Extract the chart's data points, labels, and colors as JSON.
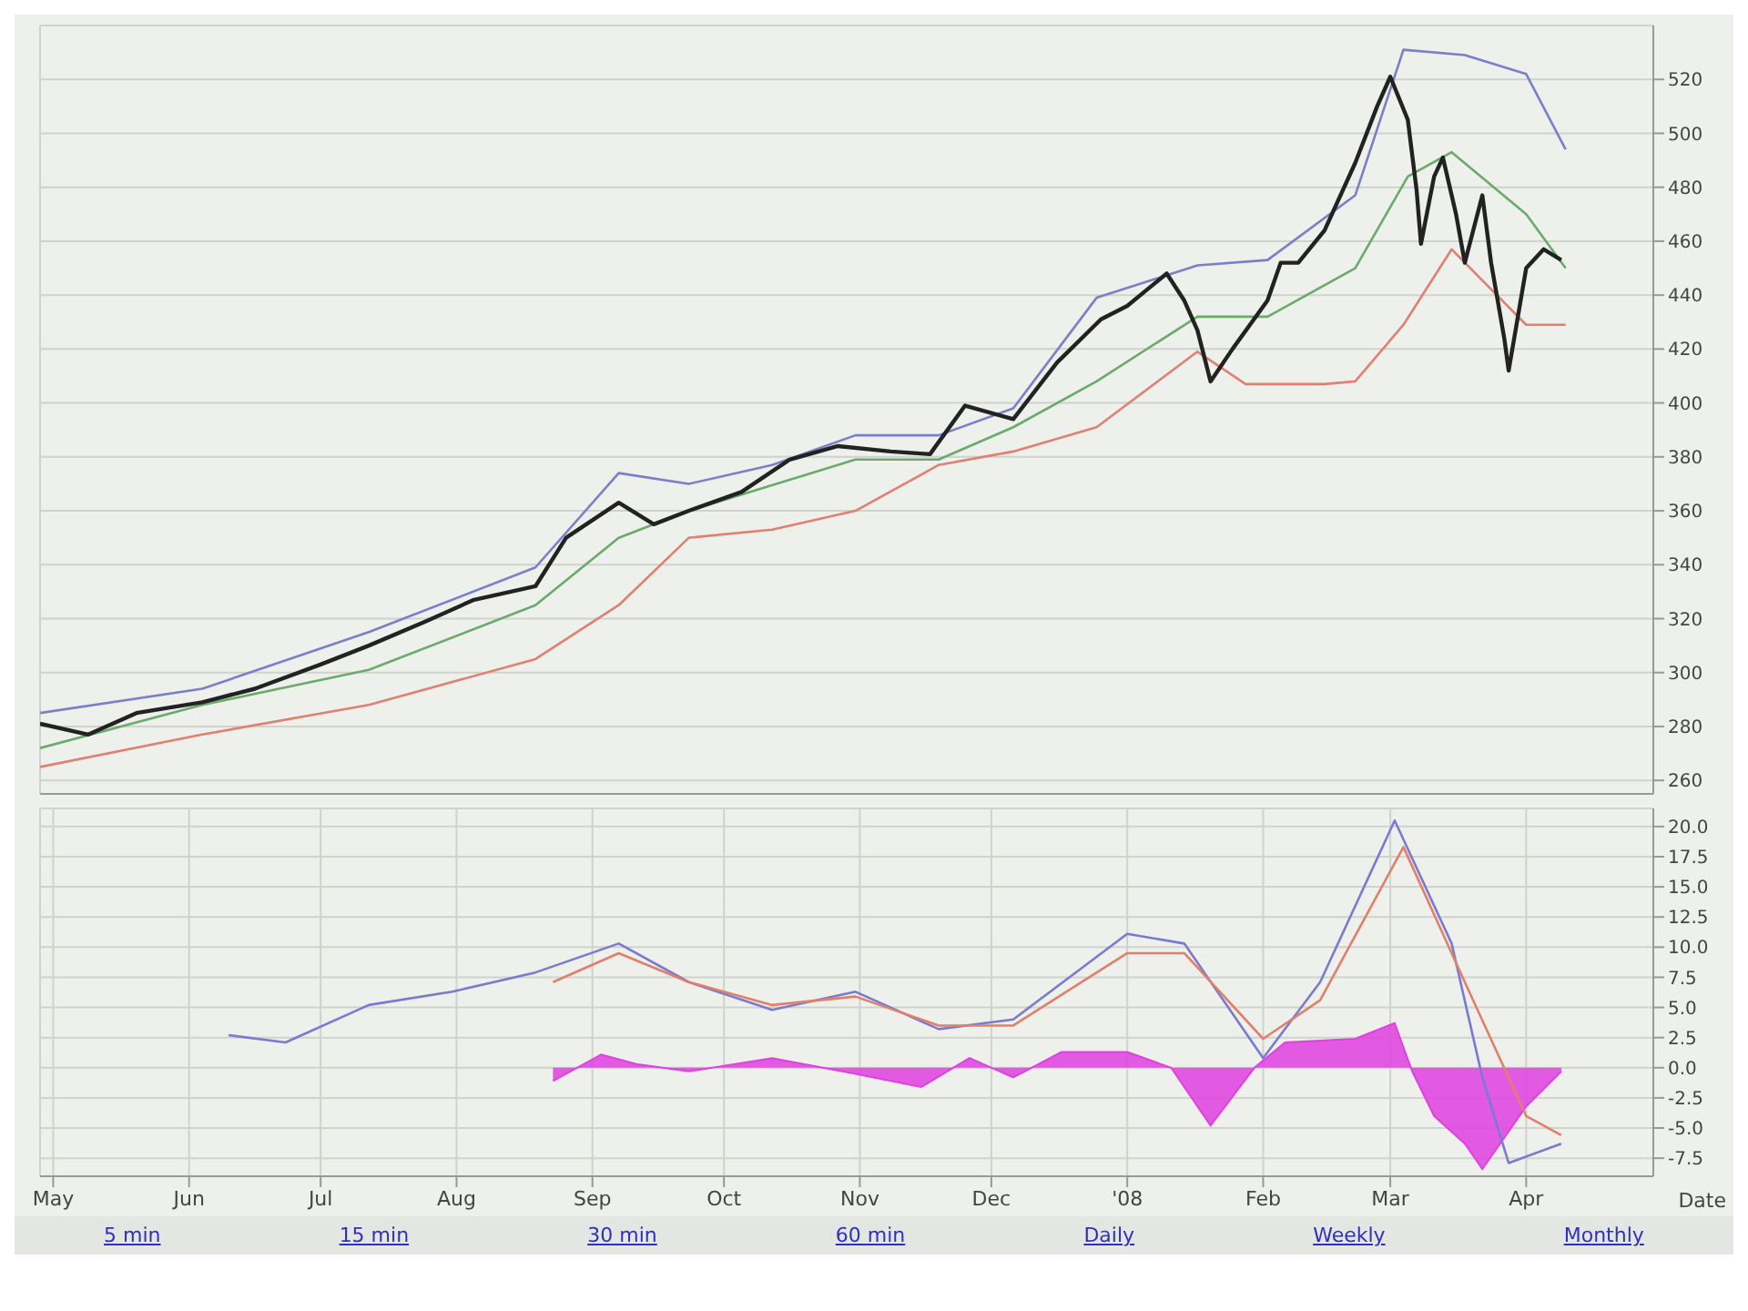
{
  "chart_data": [
    {
      "type": "line",
      "grid": true,
      "tick_labels": "y",
      "xlim": [
        "2007-04-28",
        "2008-04-30"
      ],
      "ylim": [
        255,
        540
      ],
      "xticks": [
        {
          "value": "2007-05-01",
          "label": null
        },
        {
          "value": "2007-06-01",
          "label": null
        },
        {
          "value": "2007-07-01",
          "label": null
        },
        {
          "value": "2007-08-01",
          "label": null
        },
        {
          "value": "2007-09-01",
          "label": null
        },
        {
          "value": "2007-10-01",
          "label": null
        },
        {
          "value": "2007-11-01",
          "label": null
        },
        {
          "value": "2007-12-01",
          "label": null
        },
        {
          "value": "2008-01-01",
          "label": null
        },
        {
          "value": "2008-02-01",
          "label": null
        },
        {
          "value": "2008-03-01",
          "label": null
        },
        {
          "value": "2008-04-01",
          "label": null
        }
      ],
      "yticks": [
        260,
        280,
        300,
        320,
        340,
        360,
        380,
        400,
        420,
        440,
        460,
        480,
        500,
        520
      ],
      "series": [
        {
          "color": "#7b7fc9",
          "x": [
            "2007-04-28",
            "2007-06-04",
            "2007-07-12",
            "2007-08-19",
            "2007-09-07",
            "2007-09-23",
            "2007-10-12",
            "2007-10-31",
            "2007-11-19",
            "2007-12-06",
            "2007-12-25",
            "2008-01-17",
            "2008-02-02",
            "2008-02-22",
            "2008-03-04",
            "2008-03-18",
            "2008-04-01",
            "2008-04-10"
          ],
          "values": [
            285,
            294,
            315,
            339,
            374,
            370,
            377,
            388,
            388,
            398,
            439,
            451,
            453,
            477,
            531,
            529,
            522,
            494
          ]
        },
        {
          "color": "#6aaa6a",
          "x": [
            "2007-04-28",
            "2007-06-04",
            "2007-07-12",
            "2007-08-19",
            "2007-09-07",
            "2007-09-23",
            "2007-10-31",
            "2007-11-19",
            "2007-12-06",
            "2007-12-25",
            "2008-01-17",
            "2008-02-02",
            "2008-02-22",
            "2008-03-05",
            "2008-03-15",
            "2008-04-01",
            "2008-04-10"
          ],
          "values": [
            272,
            288,
            301,
            325,
            350,
            360,
            379,
            379,
            391,
            408,
            432,
            432,
            450,
            484,
            493,
            470,
            450
          ]
        },
        {
          "color": "#e08070",
          "x": [
            "2007-04-28",
            "2007-06-04",
            "2007-07-12",
            "2007-08-19",
            "2007-09-07",
            "2007-09-23",
            "2007-10-12",
            "2007-10-31",
            "2007-11-19",
            "2007-12-06",
            "2007-12-25",
            "2008-01-17",
            "2008-01-28",
            "2008-02-15",
            "2008-02-22",
            "2008-03-04",
            "2008-03-15",
            "2008-04-01",
            "2008-04-10"
          ],
          "values": [
            265,
            277,
            288,
            305,
            325,
            350,
            353,
            360,
            377,
            382,
            391,
            419,
            407,
            407,
            408,
            429,
            457,
            429,
            429
          ]
        },
        {
          "color": "#222222",
          "x": [
            "2007-04-28",
            "2007-05-09",
            "2007-05-20",
            "2007-06-04",
            "2007-06-16",
            "2007-07-01",
            "2007-07-12",
            "2007-07-25",
            "2007-08-05",
            "2007-08-19",
            "2007-08-26",
            "2007-09-07",
            "2007-09-15",
            "2007-09-23",
            "2007-10-05",
            "2007-10-16",
            "2007-10-27",
            "2007-11-08",
            "2007-11-17",
            "2007-11-25",
            "2007-12-06",
            "2007-12-16",
            "2007-12-26",
            "2008-01-01",
            "2008-01-10",
            "2008-01-14",
            "2008-01-17",
            "2008-01-20",
            "2008-01-25",
            "2008-02-02",
            "2008-02-05",
            "2008-02-09",
            "2008-02-15",
            "2008-02-22",
            "2008-02-27",
            "2008-03-01",
            "2008-03-05",
            "2008-03-07",
            "2008-03-08",
            "2008-03-11",
            "2008-03-13",
            "2008-03-16",
            "2008-03-18",
            "2008-03-22",
            "2008-03-24",
            "2008-03-27",
            "2008-03-28",
            "2008-04-01",
            "2008-04-05",
            "2008-04-09"
          ],
          "values": [
            281,
            277,
            285,
            289,
            294,
            303,
            310,
            319,
            327,
            332,
            350,
            363,
            355,
            360,
            367,
            379,
            384,
            382,
            381,
            399,
            394,
            415,
            431,
            436,
            448,
            438,
            427,
            408,
            420,
            438,
            452,
            452,
            464,
            489,
            510,
            521,
            505,
            479,
            459,
            484,
            491,
            470,
            452,
            477,
            452,
            424,
            412,
            450,
            457,
            453
          ]
        }
      ]
    },
    {
      "type": "line",
      "grid": true,
      "xlabel": "Date",
      "xlim": [
        "2007-04-28",
        "2008-04-30"
      ],
      "ylim": [
        -9,
        21.5
      ],
      "xticks": [
        {
          "value": "2007-05-01",
          "label": "May"
        },
        {
          "value": "2007-06-01",
          "label": "Jun"
        },
        {
          "value": "2007-07-01",
          "label": "Jul"
        },
        {
          "value": "2007-08-01",
          "label": "Aug"
        },
        {
          "value": "2007-09-01",
          "label": "Sep"
        },
        {
          "value": "2007-10-01",
          "label": "Oct"
        },
        {
          "value": "2007-11-01",
          "label": "Nov"
        },
        {
          "value": "2007-12-01",
          "label": "Dec"
        },
        {
          "value": "2008-01-01",
          "label": "'08"
        },
        {
          "value": "2008-02-01",
          "label": "Feb"
        },
        {
          "value": "2008-03-01",
          "label": "Mar"
        },
        {
          "value": "2008-04-01",
          "label": "Apr"
        }
      ],
      "yticks": [
        {
          "value": -7.5,
          "label": "-7.5"
        },
        {
          "value": -5,
          "label": "-5.0"
        },
        {
          "value": -2.5,
          "label": "-2.5"
        },
        {
          "value": 0,
          "label": "0.0"
        },
        {
          "value": 2.5,
          "label": "2.5"
        },
        {
          "value": 5,
          "label": "5.0"
        },
        {
          "value": 7.5,
          "label": "7.5"
        },
        {
          "value": 10,
          "label": "10.0"
        },
        {
          "value": 12.5,
          "label": "12.5"
        },
        {
          "value": 15,
          "label": "15.0"
        },
        {
          "value": 17.5,
          "label": "17.5"
        },
        {
          "value": 20,
          "label": "20.0"
        }
      ],
      "annotations": [
        "5 min",
        "15 min",
        "30 min",
        "60 min",
        "Daily",
        "Weekly",
        "Monthly"
      ],
      "series": [
        {
          "type": "area",
          "color": "#e040e0",
          "x": [
            "2007-08-23",
            "2007-09-03",
            "2007-09-11",
            "2007-09-23",
            "2007-10-12",
            "2007-10-31",
            "2007-11-15",
            "2007-11-26",
            "2007-12-06",
            "2007-12-17",
            "2008-01-01",
            "2008-01-11",
            "2008-01-20",
            "2008-01-30",
            "2008-02-06",
            "2008-02-22",
            "2008-03-02",
            "2008-03-06",
            "2008-03-11",
            "2008-03-18",
            "2008-03-22",
            "2008-04-01",
            "2008-04-09"
          ],
          "values": [
            -1.1,
            1.1,
            0.3,
            -0.3,
            0.8,
            -0.5,
            -1.6,
            0.8,
            -0.8,
            1.3,
            1.3,
            0,
            -4.8,
            0,
            2.1,
            2.4,
            3.7,
            -0.3,
            -4.0,
            -6.3,
            -8.4,
            -3.2,
            -0.3
          ]
        },
        {
          "color": "#7a7ad0",
          "x": [
            "2007-06-10",
            "2007-06-23",
            "2007-07-12",
            "2007-07-31",
            "2007-08-19",
            "2007-09-07",
            "2007-09-23",
            "2007-10-12",
            "2007-10-31",
            "2007-11-19",
            "2007-12-06",
            "2008-01-01",
            "2008-01-14",
            "2008-02-01",
            "2008-02-14",
            "2008-03-02",
            "2008-03-15",
            "2008-03-22",
            "2008-03-28",
            "2008-04-09"
          ],
          "values": [
            2.7,
            2.1,
            5.2,
            6.3,
            7.9,
            10.3,
            7.1,
            4.8,
            6.3,
            3.2,
            4.0,
            11.1,
            10.3,
            0.8,
            7.1,
            20.5,
            10.3,
            -0.8,
            -7.9,
            -6.3
          ]
        },
        {
          "color": "#e0806a",
          "x": [
            "2007-08-23",
            "2007-09-07",
            "2007-09-23",
            "2007-10-12",
            "2007-10-31",
            "2007-11-19",
            "2007-12-06",
            "2008-01-01",
            "2008-01-14",
            "2008-02-01",
            "2008-02-14",
            "2008-03-04",
            "2008-03-18",
            "2008-04-01",
            "2008-04-09"
          ],
          "values": [
            7.1,
            9.5,
            7.1,
            5.2,
            5.9,
            3.5,
            3.5,
            9.5,
            9.5,
            2.4,
            5.6,
            18.3,
            7.1,
            -4.0,
            -5.6
          ]
        }
      ]
    }
  ]
}
